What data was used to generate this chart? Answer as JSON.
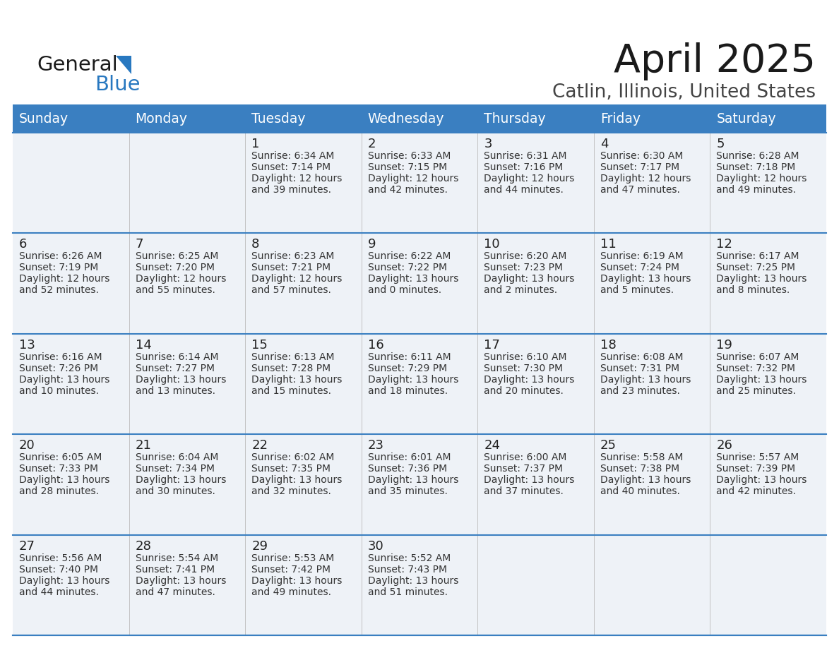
{
  "title": "April 2025",
  "subtitle": "Catlin, Illinois, United States",
  "header_bg_color": "#3a7fc1",
  "header_text_color": "#ffffff",
  "cell_bg_color": "#eef2f7",
  "cell_text_color": "#333333",
  "day_number_color": "#222222",
  "separator_color": "#3a7fc1",
  "logo_text_color": "#222222",
  "logo_blue_color": "#2878c0",
  "days_of_week": [
    "Sunday",
    "Monday",
    "Tuesday",
    "Wednesday",
    "Thursday",
    "Friday",
    "Saturday"
  ],
  "weeks": [
    [
      {
        "day": "",
        "sunrise": "",
        "sunset": "",
        "daylight": ""
      },
      {
        "day": "",
        "sunrise": "",
        "sunset": "",
        "daylight": ""
      },
      {
        "day": "1",
        "sunrise": "Sunrise: 6:34 AM",
        "sunset": "Sunset: 7:14 PM",
        "daylight": "Daylight: 12 hours\nand 39 minutes."
      },
      {
        "day": "2",
        "sunrise": "Sunrise: 6:33 AM",
        "sunset": "Sunset: 7:15 PM",
        "daylight": "Daylight: 12 hours\nand 42 minutes."
      },
      {
        "day": "3",
        "sunrise": "Sunrise: 6:31 AM",
        "sunset": "Sunset: 7:16 PM",
        "daylight": "Daylight: 12 hours\nand 44 minutes."
      },
      {
        "day": "4",
        "sunrise": "Sunrise: 6:30 AM",
        "sunset": "Sunset: 7:17 PM",
        "daylight": "Daylight: 12 hours\nand 47 minutes."
      },
      {
        "day": "5",
        "sunrise": "Sunrise: 6:28 AM",
        "sunset": "Sunset: 7:18 PM",
        "daylight": "Daylight: 12 hours\nand 49 minutes."
      }
    ],
    [
      {
        "day": "6",
        "sunrise": "Sunrise: 6:26 AM",
        "sunset": "Sunset: 7:19 PM",
        "daylight": "Daylight: 12 hours\nand 52 minutes."
      },
      {
        "day": "7",
        "sunrise": "Sunrise: 6:25 AM",
        "sunset": "Sunset: 7:20 PM",
        "daylight": "Daylight: 12 hours\nand 55 minutes."
      },
      {
        "day": "8",
        "sunrise": "Sunrise: 6:23 AM",
        "sunset": "Sunset: 7:21 PM",
        "daylight": "Daylight: 12 hours\nand 57 minutes."
      },
      {
        "day": "9",
        "sunrise": "Sunrise: 6:22 AM",
        "sunset": "Sunset: 7:22 PM",
        "daylight": "Daylight: 13 hours\nand 0 minutes."
      },
      {
        "day": "10",
        "sunrise": "Sunrise: 6:20 AM",
        "sunset": "Sunset: 7:23 PM",
        "daylight": "Daylight: 13 hours\nand 2 minutes."
      },
      {
        "day": "11",
        "sunrise": "Sunrise: 6:19 AM",
        "sunset": "Sunset: 7:24 PM",
        "daylight": "Daylight: 13 hours\nand 5 minutes."
      },
      {
        "day": "12",
        "sunrise": "Sunrise: 6:17 AM",
        "sunset": "Sunset: 7:25 PM",
        "daylight": "Daylight: 13 hours\nand 8 minutes."
      }
    ],
    [
      {
        "day": "13",
        "sunrise": "Sunrise: 6:16 AM",
        "sunset": "Sunset: 7:26 PM",
        "daylight": "Daylight: 13 hours\nand 10 minutes."
      },
      {
        "day": "14",
        "sunrise": "Sunrise: 6:14 AM",
        "sunset": "Sunset: 7:27 PM",
        "daylight": "Daylight: 13 hours\nand 13 minutes."
      },
      {
        "day": "15",
        "sunrise": "Sunrise: 6:13 AM",
        "sunset": "Sunset: 7:28 PM",
        "daylight": "Daylight: 13 hours\nand 15 minutes."
      },
      {
        "day": "16",
        "sunrise": "Sunrise: 6:11 AM",
        "sunset": "Sunset: 7:29 PM",
        "daylight": "Daylight: 13 hours\nand 18 minutes."
      },
      {
        "day": "17",
        "sunrise": "Sunrise: 6:10 AM",
        "sunset": "Sunset: 7:30 PM",
        "daylight": "Daylight: 13 hours\nand 20 minutes."
      },
      {
        "day": "18",
        "sunrise": "Sunrise: 6:08 AM",
        "sunset": "Sunset: 7:31 PM",
        "daylight": "Daylight: 13 hours\nand 23 minutes."
      },
      {
        "day": "19",
        "sunrise": "Sunrise: 6:07 AM",
        "sunset": "Sunset: 7:32 PM",
        "daylight": "Daylight: 13 hours\nand 25 minutes."
      }
    ],
    [
      {
        "day": "20",
        "sunrise": "Sunrise: 6:05 AM",
        "sunset": "Sunset: 7:33 PM",
        "daylight": "Daylight: 13 hours\nand 28 minutes."
      },
      {
        "day": "21",
        "sunrise": "Sunrise: 6:04 AM",
        "sunset": "Sunset: 7:34 PM",
        "daylight": "Daylight: 13 hours\nand 30 minutes."
      },
      {
        "day": "22",
        "sunrise": "Sunrise: 6:02 AM",
        "sunset": "Sunset: 7:35 PM",
        "daylight": "Daylight: 13 hours\nand 32 minutes."
      },
      {
        "day": "23",
        "sunrise": "Sunrise: 6:01 AM",
        "sunset": "Sunset: 7:36 PM",
        "daylight": "Daylight: 13 hours\nand 35 minutes."
      },
      {
        "day": "24",
        "sunrise": "Sunrise: 6:00 AM",
        "sunset": "Sunset: 7:37 PM",
        "daylight": "Daylight: 13 hours\nand 37 minutes."
      },
      {
        "day": "25",
        "sunrise": "Sunrise: 5:58 AM",
        "sunset": "Sunset: 7:38 PM",
        "daylight": "Daylight: 13 hours\nand 40 minutes."
      },
      {
        "day": "26",
        "sunrise": "Sunrise: 5:57 AM",
        "sunset": "Sunset: 7:39 PM",
        "daylight": "Daylight: 13 hours\nand 42 minutes."
      }
    ],
    [
      {
        "day": "27",
        "sunrise": "Sunrise: 5:56 AM",
        "sunset": "Sunset: 7:40 PM",
        "daylight": "Daylight: 13 hours\nand 44 minutes."
      },
      {
        "day": "28",
        "sunrise": "Sunrise: 5:54 AM",
        "sunset": "Sunset: 7:41 PM",
        "daylight": "Daylight: 13 hours\nand 47 minutes."
      },
      {
        "day": "29",
        "sunrise": "Sunrise: 5:53 AM",
        "sunset": "Sunset: 7:42 PM",
        "daylight": "Daylight: 13 hours\nand 49 minutes."
      },
      {
        "day": "30",
        "sunrise": "Sunrise: 5:52 AM",
        "sunset": "Sunset: 7:43 PM",
        "daylight": "Daylight: 13 hours\nand 51 minutes."
      },
      {
        "day": "",
        "sunrise": "",
        "sunset": "",
        "daylight": ""
      },
      {
        "day": "",
        "sunrise": "",
        "sunset": "",
        "daylight": ""
      },
      {
        "day": "",
        "sunrise": "",
        "sunset": "",
        "daylight": ""
      }
    ]
  ]
}
